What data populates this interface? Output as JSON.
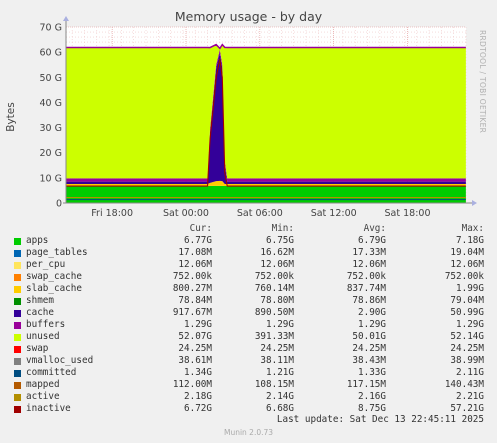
{
  "colors": {
    "background": "#f0f0f0",
    "plot_background": "#ffffff",
    "grid": "#e8b0b0",
    "axis": "#888888"
  },
  "side_watermark": "RRDTOOL / TOBI OETIKER",
  "footer": "Munin 2.0.73",
  "last_update": "Last update: Sat Dec 13 22:45:11 2025",
  "legend": {
    "headers": [
      "Cur:",
      "Min:",
      "Avg:",
      "Max:"
    ],
    "rows": [
      {
        "name": "apps",
        "color": "#00cc00",
        "cur": "6.77G",
        "min": "6.75G",
        "avg": "6.79G",
        "max": "7.18G"
      },
      {
        "name": "page_tables",
        "color": "#0066b3",
        "cur": "17.08M",
        "min": "16.62M",
        "avg": "17.33M",
        "max": "19.04M"
      },
      {
        "name": "per_cpu",
        "color": "#ffe55c",
        "cur": "12.06M",
        "min": "12.06M",
        "avg": "12.06M",
        "max": "12.06M"
      },
      {
        "name": "swap_cache",
        "color": "#ff8000",
        "cur": "752.00k",
        "min": "752.00k",
        "avg": "752.00k",
        "max": "752.00k"
      },
      {
        "name": "slab_cache",
        "color": "#ffcc00",
        "cur": "800.27M",
        "min": "760.14M",
        "avg": "837.74M",
        "max": "1.99G"
      },
      {
        "name": "shmem",
        "color": "#008f00",
        "cur": "78.84M",
        "min": "78.80M",
        "avg": "78.86M",
        "max": "79.04M"
      },
      {
        "name": "cache",
        "color": "#330099",
        "cur": "917.67M",
        "min": "890.50M",
        "avg": "2.90G",
        "max": "50.99G"
      },
      {
        "name": "buffers",
        "color": "#990099",
        "cur": "1.29G",
        "min": "1.29G",
        "avg": "1.29G",
        "max": "1.29G"
      },
      {
        "name": "unused",
        "color": "#ccff00",
        "cur": "52.07G",
        "min": "391.33M",
        "avg": "50.01G",
        "max": "52.14G"
      },
      {
        "name": "swap",
        "color": "#ff0000",
        "cur": "24.25M",
        "min": "24.25M",
        "avg": "24.25M",
        "max": "24.25M"
      },
      {
        "name": "vmalloc_used",
        "color": "#808080",
        "cur": "38.61M",
        "min": "38.11M",
        "avg": "38.43M",
        "max": "38.99M"
      },
      {
        "name": "committed",
        "color": "#004d80",
        "cur": "1.34G",
        "min": "1.21G",
        "avg": "1.33G",
        "max": "2.11G"
      },
      {
        "name": "mapped",
        "color": "#b35a00",
        "cur": "112.00M",
        "min": "108.15M",
        "avg": "117.15M",
        "max": "140.43M"
      },
      {
        "name": "active",
        "color": "#b38f00",
        "cur": "2.18G",
        "min": "2.14G",
        "avg": "2.16G",
        "max": "2.21G"
      },
      {
        "name": "inactive",
        "color": "#a00000",
        "cur": "6.72G",
        "min": "6.68G",
        "avg": "8.75G",
        "max": "57.21G"
      }
    ]
  },
  "chart_data": {
    "type": "area",
    "title": "Memory usage - by day",
    "ylabel": "Bytes",
    "ylim": [
      0,
      70
    ],
    "y_unit": "G",
    "y_ticks": [
      0,
      10,
      20,
      30,
      40,
      50,
      60,
      70
    ],
    "y_tick_labels": [
      "0",
      "10 G",
      "20 G",
      "30 G",
      "40 G",
      "50 G",
      "60 G",
      "70 G"
    ],
    "x_range_hours": [
      -32.5,
      0
    ],
    "x_ticks": [
      {
        "label": "Fri 18:00",
        "hours": -28.75
      },
      {
        "label": "Sat 00:00",
        "hours": -22.75
      },
      {
        "label": "Sat 06:00",
        "hours": -16.75
      },
      {
        "label": "Sat 12:00",
        "hours": -10.75
      },
      {
        "label": "Sat 18:00",
        "hours": -4.75
      }
    ],
    "grid": true,
    "x": [
      -32.5,
      -21.0,
      -20.8,
      -20.3,
      -20.0,
      -19.8,
      -19.6,
      -19.4,
      -0.01
    ],
    "stack_series": [
      {
        "name": "apps",
        "color": "#00cc00",
        "values": [
          6.77,
          6.77,
          6.8,
          6.8,
          6.8,
          6.8,
          6.77,
          6.77,
          6.77
        ]
      },
      {
        "name": "slab_cache",
        "color": "#ffcc00",
        "values": [
          0.8,
          0.8,
          1.2,
          1.9,
          1.99,
          1.9,
          0.8,
          0.8,
          0.8
        ]
      },
      {
        "name": "cache",
        "color": "#330099",
        "values": [
          0.92,
          0.92,
          20.0,
          45.0,
          50.99,
          45.0,
          8.0,
          0.92,
          0.92
        ]
      },
      {
        "name": "buffers",
        "color": "#990099",
        "values": [
          1.29,
          1.29,
          1.29,
          1.29,
          1.29,
          1.29,
          1.29,
          1.29,
          1.29
        ]
      },
      {
        "name": "unused",
        "color": "#ccff00",
        "values": [
          52.07,
          52.07,
          32.5,
          8.0,
          0.39,
          8.0,
          45.0,
          52.07,
          52.07
        ]
      },
      {
        "name": "swap",
        "color": "#ff0000",
        "values": [
          0.02,
          0.02,
          0.02,
          0.02,
          0.02,
          0.02,
          0.02,
          0.02,
          0.02
        ]
      }
    ],
    "lines": [
      {
        "name": "committed",
        "color": "#004d80",
        "values": [
          1.34,
          1.34,
          1.34,
          1.34,
          1.34,
          1.34,
          1.34,
          1.34,
          1.34
        ]
      },
      {
        "name": "active",
        "color": "#b38f00",
        "values": [
          2.18,
          2.18,
          2.18,
          2.18,
          2.18,
          2.18,
          2.18,
          2.18,
          2.18
        ]
      },
      {
        "name": "inactive",
        "color": "#a00000",
        "values": [
          6.72,
          6.72,
          25.0,
          50.0,
          57.21,
          50.0,
          12.0,
          6.72,
          6.72
        ]
      }
    ]
  }
}
